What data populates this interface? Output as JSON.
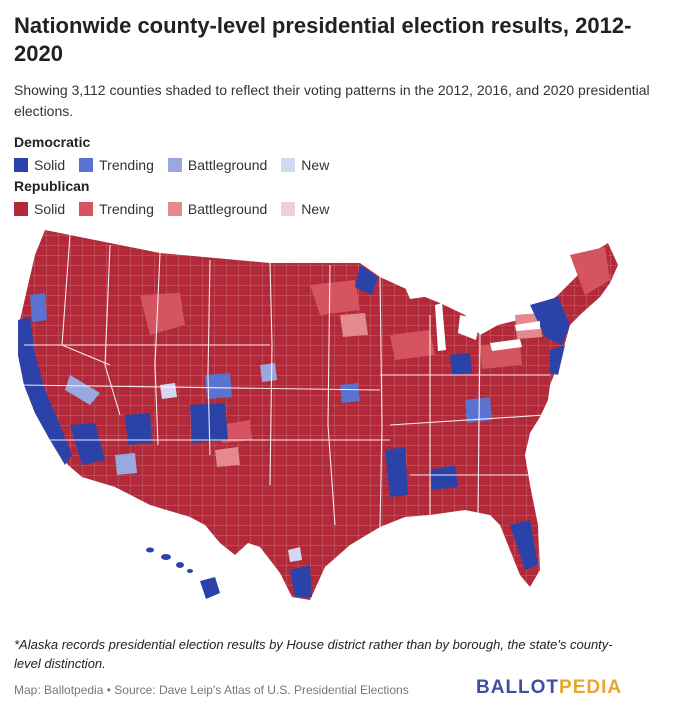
{
  "header": {
    "title": "Nationwide county-level presidential election results, 2012-2020",
    "subtitle": "Showing 3,112 counties shaded to reflect their voting patterns in the 2012, 2016, and 2020 presidential elections."
  },
  "legend": {
    "democratic": {
      "label": "Democratic",
      "items": [
        {
          "label": "Solid",
          "color": "#2b43a8"
        },
        {
          "label": "Trending",
          "color": "#5a72d0"
        },
        {
          "label": "Battleground",
          "color": "#9aa8e0"
        },
        {
          "label": "New",
          "color": "#d4d9f2"
        }
      ]
    },
    "republican": {
      "label": "Republican",
      "items": [
        {
          "label": "Solid",
          "color": "#b22a3a"
        },
        {
          "label": "Trending",
          "color": "#d4545f"
        },
        {
          "label": "Battleground",
          "color": "#e3898f"
        },
        {
          "label": "New",
          "color": "#f3cfd2"
        }
      ]
    }
  },
  "map": {
    "region_icon": "us-county-map-icon"
  },
  "footnote": "*Alaska records presidential election results by House district rather than by borough, the state's county-level distinction.",
  "source": "Map: Ballotpedia • Source: Dave Leip's Atlas of U.S. Presidential Elections",
  "logo": {
    "part1": "BALLOT",
    "part2": "PEDIA"
  }
}
